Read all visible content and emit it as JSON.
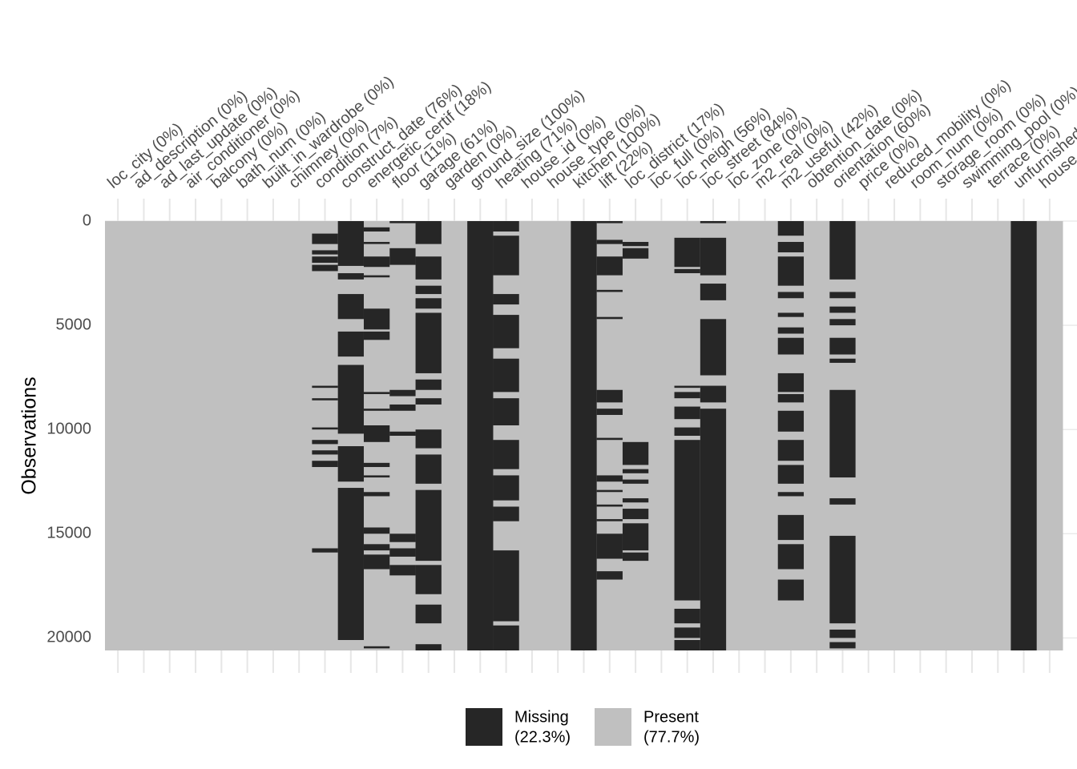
{
  "chart_data": {
    "type": "missingness",
    "y_label": "Observations",
    "ylim": [
      0,
      20600
    ],
    "yticks": [
      0,
      5000,
      10000,
      15000,
      20000
    ],
    "grid": true,
    "missing_color": "#262626",
    "present_color": "#c0c0c0",
    "legend": [
      {
        "name": "Missing",
        "share": "(22.3%)",
        "color": "#262626"
      },
      {
        "name": "Present",
        "share": "(77.7%)",
        "color": "#c0c0c0"
      }
    ],
    "columns": [
      {
        "label": "loc_city (0%)",
        "missing": []
      },
      {
        "label": "ad_description (0%)",
        "missing": []
      },
      {
        "label": "ad_last_update (0%)",
        "missing": []
      },
      {
        "label": "air_conditioner (0%)",
        "missing": []
      },
      {
        "label": "balcony (0%)",
        "missing": []
      },
      {
        "label": "bath_num (0%)",
        "missing": []
      },
      {
        "label": "built_in_wardrobe (0%)",
        "missing": []
      },
      {
        "label": "chimney (0%)",
        "missing": []
      },
      {
        "label": "condition (7%)",
        "missing": [
          [
            600,
            1100
          ],
          [
            1400,
            1600
          ],
          [
            1700,
            2000
          ],
          [
            2100,
            2400
          ],
          [
            7900,
            8000
          ],
          [
            8500,
            8600
          ],
          [
            9900,
            10000
          ],
          [
            10500,
            10700
          ],
          [
            11000,
            11200
          ],
          [
            11500,
            11800
          ],
          [
            15700,
            15900
          ]
        ]
      },
      {
        "label": "construct_date (76%)",
        "missing": [
          [
            0,
            2150
          ],
          [
            2500,
            2800
          ],
          [
            3500,
            4700
          ],
          [
            5300,
            6500
          ],
          [
            6900,
            10200
          ],
          [
            10800,
            12500
          ],
          [
            12800,
            20100
          ]
        ]
      },
      {
        "label": "energetic_certif (18%)",
        "missing": [
          [
            300,
            500
          ],
          [
            1000,
            1100
          ],
          [
            1700,
            2200
          ],
          [
            2600,
            2700
          ],
          [
            4200,
            5200
          ],
          [
            5300,
            5700
          ],
          [
            8200,
            8300
          ],
          [
            9000,
            9100
          ],
          [
            9800,
            10600
          ],
          [
            11600,
            11800
          ],
          [
            12200,
            12300
          ],
          [
            13000,
            13200
          ],
          [
            14700,
            15000
          ],
          [
            15500,
            15800
          ],
          [
            16000,
            16700
          ],
          [
            20400,
            20500
          ]
        ]
      },
      {
        "label": "floor (11%)",
        "missing": [
          [
            0,
            100
          ],
          [
            1300,
            2100
          ],
          [
            8100,
            8400
          ],
          [
            8800,
            9100
          ],
          [
            10100,
            10300
          ],
          [
            15000,
            15400
          ],
          [
            15700,
            16100
          ],
          [
            16500,
            17000
          ]
        ]
      },
      {
        "label": "garage (61%)",
        "missing": [
          [
            0,
            1100
          ],
          [
            1700,
            2800
          ],
          [
            3100,
            3500
          ],
          [
            3700,
            4200
          ],
          [
            4400,
            7300
          ],
          [
            7600,
            8100
          ],
          [
            8500,
            8800
          ],
          [
            10000,
            10900
          ],
          [
            11200,
            12600
          ],
          [
            12900,
            16300
          ],
          [
            16500,
            17900
          ],
          [
            18400,
            19300
          ],
          [
            20300,
            20600
          ]
        ]
      },
      {
        "label": "garden (0%)",
        "missing": []
      },
      {
        "label": "ground_size (100%)",
        "missing": [
          [
            0,
            20600
          ]
        ]
      },
      {
        "label": "heating (71%)",
        "missing": [
          [
            0,
            500
          ],
          [
            700,
            2600
          ],
          [
            3500,
            4000
          ],
          [
            4500,
            6100
          ],
          [
            6600,
            8200
          ],
          [
            8500,
            9800
          ],
          [
            10500,
            11900
          ],
          [
            12200,
            13400
          ],
          [
            13700,
            14400
          ],
          [
            15800,
            19200
          ],
          [
            19400,
            20600
          ]
        ]
      },
      {
        "label": "house_id (0%)",
        "missing": []
      },
      {
        "label": "house_type (0%)",
        "missing": []
      },
      {
        "label": "kitchen (100%)",
        "missing": [
          [
            0,
            20600
          ]
        ]
      },
      {
        "label": "lift (22%)",
        "missing": [
          [
            0,
            100
          ],
          [
            900,
            1100
          ],
          [
            1700,
            2600
          ],
          [
            3300,
            3400
          ],
          [
            4600,
            4700
          ],
          [
            8100,
            8700
          ],
          [
            9000,
            9300
          ],
          [
            10400,
            10500
          ],
          [
            12200,
            12500
          ],
          [
            12900,
            13000
          ],
          [
            13600,
            13700
          ],
          [
            14300,
            14400
          ],
          [
            15000,
            16200
          ],
          [
            16800,
            17200
          ]
        ]
      },
      {
        "label": "loc_district (17%)",
        "missing": [
          [
            1000,
            1200
          ],
          [
            1300,
            1800
          ],
          [
            10600,
            11700
          ],
          [
            11900,
            12100
          ],
          [
            12400,
            12600
          ],
          [
            13300,
            13500
          ],
          [
            13800,
            14300
          ],
          [
            14500,
            15800
          ],
          [
            15900,
            16300
          ]
        ]
      },
      {
        "label": "loc_full (0%)",
        "missing": []
      },
      {
        "label": "loc_neigh (56%)",
        "missing": [
          [
            800,
            2200
          ],
          [
            2300,
            2500
          ],
          [
            7900,
            8000
          ],
          [
            8200,
            8500
          ],
          [
            8900,
            9500
          ],
          [
            9900,
            10300
          ],
          [
            10500,
            18200
          ],
          [
            18600,
            19300
          ],
          [
            19500,
            20000
          ],
          [
            20100,
            20600
          ]
        ]
      },
      {
        "label": "loc_street (84%)",
        "missing": [
          [
            0,
            100
          ],
          [
            800,
            2600
          ],
          [
            3000,
            3800
          ],
          [
            4700,
            7400
          ],
          [
            7900,
            8700
          ],
          [
            9000,
            20600
          ]
        ]
      },
      {
        "label": "loc_zone (0%)",
        "missing": []
      },
      {
        "label": "m2_real (0%)",
        "missing": []
      },
      {
        "label": "m2_useful (42%)",
        "missing": [
          [
            0,
            700
          ],
          [
            1000,
            1500
          ],
          [
            1700,
            3100
          ],
          [
            3400,
            3700
          ],
          [
            4400,
            4600
          ],
          [
            5100,
            5400
          ],
          [
            5600,
            6400
          ],
          [
            7300,
            8200
          ],
          [
            8300,
            8700
          ],
          [
            9100,
            10100
          ],
          [
            10500,
            11500
          ],
          [
            11700,
            12600
          ],
          [
            13000,
            13200
          ],
          [
            14100,
            15300
          ],
          [
            15500,
            16700
          ],
          [
            17200,
            18200
          ]
        ]
      },
      {
        "label": "obtention_date (0%)",
        "missing": []
      },
      {
        "label": "orientation (60%)",
        "missing": [
          [
            0,
            2800
          ],
          [
            3400,
            3700
          ],
          [
            4100,
            4400
          ],
          [
            4700,
            5000
          ],
          [
            5600,
            6400
          ],
          [
            6600,
            6800
          ],
          [
            8100,
            12300
          ],
          [
            13300,
            13600
          ],
          [
            15100,
            19300
          ],
          [
            19600,
            20000
          ],
          [
            20200,
            20500
          ]
        ]
      },
      {
        "label": "price (0%)",
        "missing": []
      },
      {
        "label": "reduced_mobility (0%)",
        "missing": []
      },
      {
        "label": "room_num (0%)",
        "missing": []
      },
      {
        "label": "storage_room (0%)",
        "missing": []
      },
      {
        "label": "swimming_pool (0%)",
        "missing": []
      },
      {
        "label": "terrace (0%)",
        "missing": []
      },
      {
        "label": "unfurnished",
        "missing": [
          [
            0,
            20600
          ]
        ]
      },
      {
        "label": "house",
        "missing": []
      }
    ]
  }
}
